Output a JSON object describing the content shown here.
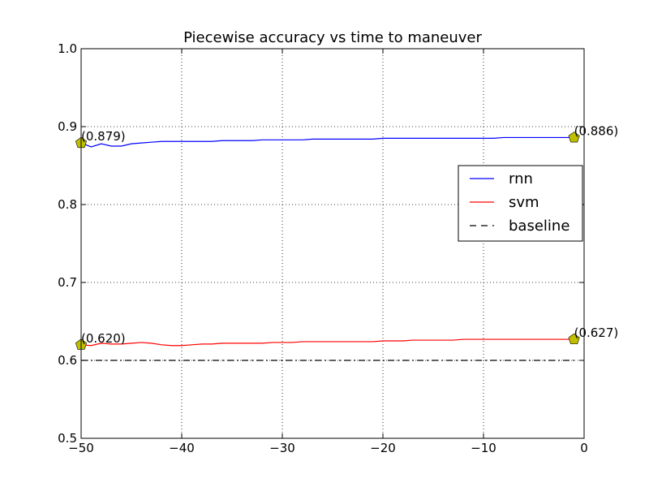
{
  "chart_data": {
    "type": "line",
    "title": "Piecewise accuracy vs time to maneuver",
    "xlabel": "",
    "ylabel": "",
    "xlim": [
      -50,
      0
    ],
    "ylim": [
      0.5,
      1.0
    ],
    "x_ticks": [
      -50,
      -40,
      -30,
      -20,
      -10,
      0
    ],
    "x_tick_labels": [
      "−50",
      "−40",
      "−30",
      "−20",
      "−10",
      "0"
    ],
    "y_ticks": [
      0.5,
      0.6,
      0.7,
      0.8,
      0.9,
      1.0
    ],
    "y_tick_labels": [
      "0.5",
      "0.6",
      "0.7",
      "0.8",
      "0.9",
      "1.0"
    ],
    "grid": true,
    "legend_placement": "center-right",
    "series": [
      {
        "name": "rnn",
        "color": "#0000ff",
        "style": "solid",
        "x": [
          -50,
          -49,
          -48,
          -47,
          -46,
          -45,
          -44,
          -43,
          -42,
          -41,
          -40,
          -39,
          -38,
          -37,
          -36,
          -35,
          -34,
          -33,
          -32,
          -31,
          -30,
          -29,
          -28,
          -27,
          -26,
          -25,
          -24,
          -23,
          -22,
          -21,
          -20,
          -19,
          -18,
          -17,
          -16,
          -15,
          -14,
          -13,
          -12,
          -11,
          -10,
          -9,
          -8,
          -7,
          -6,
          -5,
          -4,
          -3,
          -2,
          -1
        ],
        "values": [
          0.879,
          0.874,
          0.878,
          0.875,
          0.875,
          0.878,
          0.879,
          0.88,
          0.881,
          0.881,
          0.881,
          0.881,
          0.881,
          0.881,
          0.882,
          0.882,
          0.882,
          0.882,
          0.883,
          0.883,
          0.883,
          0.883,
          0.883,
          0.884,
          0.884,
          0.884,
          0.884,
          0.884,
          0.884,
          0.884,
          0.885,
          0.885,
          0.885,
          0.885,
          0.885,
          0.885,
          0.885,
          0.885,
          0.885,
          0.885,
          0.885,
          0.885,
          0.886,
          0.886,
          0.886,
          0.886,
          0.886,
          0.886,
          0.886,
          0.886
        ]
      },
      {
        "name": "svm",
        "color": "#ff0000",
        "style": "solid",
        "x": [
          -50,
          -49,
          -48,
          -47,
          -46,
          -45,
          -44,
          -43,
          -42,
          -41,
          -40,
          -39,
          -38,
          -37,
          -36,
          -35,
          -34,
          -33,
          -32,
          -31,
          -30,
          -29,
          -28,
          -27,
          -26,
          -25,
          -24,
          -23,
          -22,
          -21,
          -20,
          -19,
          -18,
          -17,
          -16,
          -15,
          -14,
          -13,
          -12,
          -11,
          -10,
          -9,
          -8,
          -7,
          -6,
          -5,
          -4,
          -3,
          -2,
          -1
        ],
        "values": [
          0.62,
          0.619,
          0.622,
          0.621,
          0.621,
          0.622,
          0.623,
          0.622,
          0.62,
          0.619,
          0.619,
          0.62,
          0.621,
          0.621,
          0.622,
          0.622,
          0.622,
          0.622,
          0.622,
          0.623,
          0.623,
          0.623,
          0.624,
          0.624,
          0.624,
          0.624,
          0.624,
          0.624,
          0.624,
          0.624,
          0.625,
          0.625,
          0.625,
          0.626,
          0.626,
          0.626,
          0.626,
          0.626,
          0.627,
          0.627,
          0.627,
          0.627,
          0.627,
          0.627,
          0.627,
          0.627,
          0.627,
          0.627,
          0.627,
          0.627
        ]
      },
      {
        "name": "baseline",
        "color": "#000000",
        "style": "dashdot",
        "x": [
          -50,
          -1
        ],
        "values": [
          0.6,
          0.6
        ]
      }
    ],
    "markers": [
      {
        "x": -50,
        "y": 0.879,
        "label": "(0.879)"
      },
      {
        "x": -1,
        "y": 0.886,
        "label": "(0.886)"
      },
      {
        "x": -50,
        "y": 0.62,
        "label": "(0.620)"
      },
      {
        "x": -1,
        "y": 0.627,
        "label": "(0.627)"
      }
    ],
    "marker_color": "#bfbf00"
  }
}
